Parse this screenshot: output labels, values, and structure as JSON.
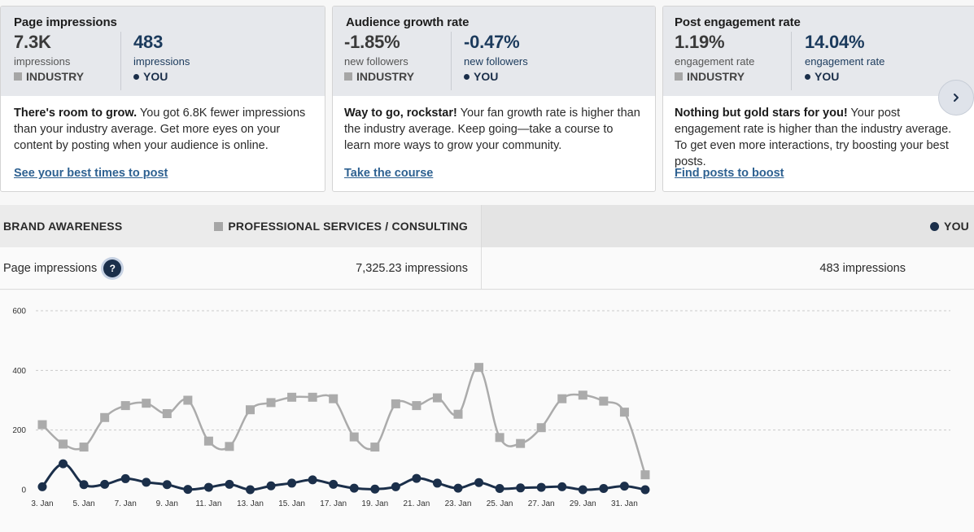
{
  "cards": [
    {
      "title": "Page impressions",
      "industry": {
        "value": "7.3K",
        "unit": "impressions",
        "label": "INDUSTRY"
      },
      "you": {
        "value": "483",
        "unit": "impressions",
        "label": "YOU"
      },
      "body_bold": "There's room to grow.",
      "body_text": " You got 6.8K fewer impressions than your industry average. Get more eyes on your content by posting when your audience is online.",
      "link": "See your best times to post"
    },
    {
      "title": "Audience growth rate",
      "industry": {
        "value": "-1.85%",
        "unit": "new followers",
        "label": "INDUSTRY"
      },
      "you": {
        "value": "-0.47%",
        "unit": "new followers",
        "label": "YOU"
      },
      "body_bold": "Way to go, rockstar!",
      "body_text": " Your fan growth rate is higher than the industry average. Keep going—take a course to learn more ways to grow your community.",
      "link": "Take the course"
    },
    {
      "title": "Post engagement rate",
      "industry": {
        "value": "1.19%",
        "unit": "engagement rate",
        "label": "INDUSTRY"
      },
      "you": {
        "value": "14.04%",
        "unit": "engagement rate",
        "label": "YOU"
      },
      "body_bold": "Nothing but gold stars for you!",
      "body_text": " Your post engagement rate is higher than the industry average. To get even more interactions, try boosting your best posts.",
      "link": "Find posts to boost"
    }
  ],
  "next_button": {
    "icon": "chevron-right-icon"
  },
  "table": {
    "section": "BRAND AWARENESS",
    "industry_header": "PROFESSIONAL SERVICES / CONSULTING",
    "you_header": "YOU",
    "row": {
      "metric": "Page impressions",
      "help_icon": "?",
      "industry_value": "7,325.23 impressions",
      "you_value": "483 impressions"
    }
  },
  "colors": {
    "industry_series": "#ababab",
    "you_series": "#1b2f4a",
    "link": "#2e6191"
  },
  "chart_data": {
    "type": "line",
    "x": [
      "3. Jan",
      "4. Jan",
      "5. Jan",
      "6. Jan",
      "7. Jan",
      "8. Jan",
      "9. Jan",
      "10. Jan",
      "11. Jan",
      "12. Jan",
      "13. Jan",
      "14. Jan",
      "15. Jan",
      "16. Jan",
      "17. Jan",
      "18. Jan",
      "19. Jan",
      "20. Jan",
      "21. Jan",
      "22. Jan",
      "23. Jan",
      "24. Jan",
      "25. Jan",
      "26. Jan",
      "27. Jan",
      "28. Jan",
      "29. Jan",
      "30. Jan",
      "31. Jan",
      "1. Feb"
    ],
    "x_tick_labels": [
      "3. Jan",
      "5. Jan",
      "7. Jan",
      "9. Jan",
      "11. Jan",
      "13. Jan",
      "15. Jan",
      "17. Jan",
      "19. Jan",
      "21. Jan",
      "23. Jan",
      "25. Jan",
      "27. Jan",
      "29. Jan",
      "31. Jan"
    ],
    "y_ticks": [
      "0",
      "200",
      "400",
      "600"
    ],
    "ylim": [
      0,
      600
    ],
    "grid": true,
    "series": [
      {
        "key": "industry",
        "marker": "square",
        "values": [
          218,
          153,
          143,
          242,
          282,
          290,
          255,
          300,
          163,
          145,
          268,
          292,
          310,
          310,
          305,
          177,
          143,
          288,
          282,
          308,
          253,
          410,
          175,
          155,
          208,
          305,
          317,
          297,
          260,
          50
        ]
      },
      {
        "key": "you",
        "marker": "circle",
        "values": [
          10,
          87,
          17,
          18,
          37,
          25,
          17,
          1,
          8,
          18,
          0,
          13,
          22,
          33,
          18,
          5,
          2,
          10,
          38,
          22,
          5,
          24,
          4,
          6,
          8,
          10,
          0,
          4,
          12,
          0
        ]
      }
    ]
  }
}
